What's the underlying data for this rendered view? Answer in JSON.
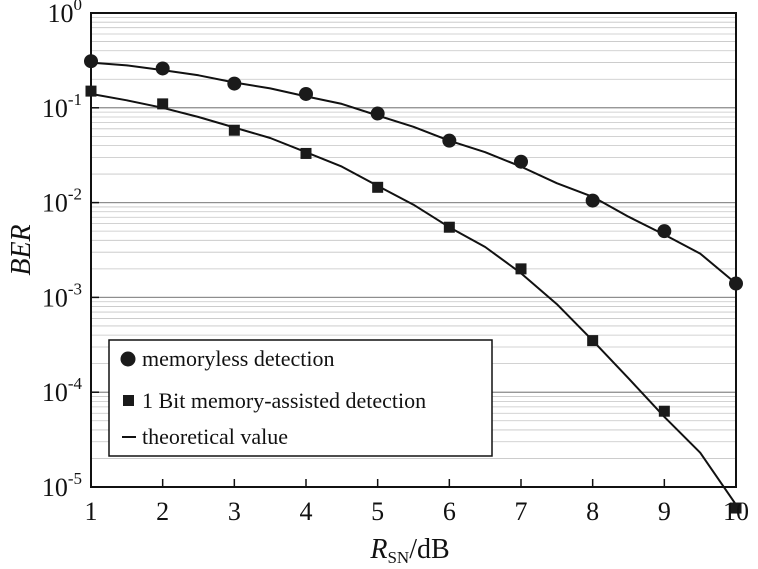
{
  "chart_data": {
    "type": "line",
    "title": "",
    "x_axis": {
      "label_main": "R",
      "label_sub": "SN",
      "label_unit": "/dB",
      "range": [
        1,
        10
      ],
      "ticks": [
        "1",
        "2",
        "3",
        "4",
        "5",
        "6",
        "7",
        "8",
        "9",
        "10"
      ]
    },
    "y_axis": {
      "label": "BER",
      "scale": "log",
      "range": [
        1e-05,
        1
      ],
      "ticks": [
        {
          "base": "10",
          "exp": "0"
        },
        {
          "base": "10",
          "exp": "-1"
        },
        {
          "base": "10",
          "exp": "-2"
        },
        {
          "base": "10",
          "exp": "-3"
        },
        {
          "base": "10",
          "exp": "-4"
        },
        {
          "base": "10",
          "exp": "-5"
        }
      ]
    },
    "grid": "horizontal-minor",
    "legend_position": "bottom-left",
    "series": [
      {
        "name": "memoryless detection",
        "marker": "circle",
        "x": [
          1,
          2,
          3,
          4,
          5,
          6,
          7,
          8,
          9,
          10
        ],
        "y": [
          0.31,
          0.26,
          0.18,
          0.14,
          0.087,
          0.045,
          0.027,
          0.0105,
          0.005,
          0.0014
        ]
      },
      {
        "name": "1 Bit memory-assisted detection",
        "marker": "square",
        "x": [
          1,
          2,
          3,
          4,
          5,
          6,
          7,
          8,
          9,
          10
        ],
        "y": [
          0.15,
          0.11,
          0.058,
          0.033,
          0.0145,
          0.0055,
          0.002,
          0.00035,
          6.3e-05,
          6e-06
        ]
      },
      {
        "name": "theoretical value",
        "marker": "line",
        "curves": [
          {
            "x": [
              1,
              1.5,
              2,
              2.5,
              3,
              3.5,
              4,
              4.5,
              5,
              5.5,
              6,
              6.5,
              7,
              7.5,
              8,
              8.5,
              9,
              9.5,
              10
            ],
            "y": [
              0.3,
              0.28,
              0.25,
              0.22,
              0.185,
              0.16,
              0.132,
              0.11,
              0.083,
              0.063,
              0.045,
              0.034,
              0.024,
              0.016,
              0.0115,
              0.0071,
              0.0046,
              0.0029,
              0.0014
            ]
          },
          {
            "x": [
              1,
              1.5,
              2,
              2.5,
              3,
              3.5,
              4,
              4.5,
              5,
              5.5,
              6,
              6.5,
              7,
              7.5,
              8,
              8.5,
              9,
              9.5,
              10
            ],
            "y": [
              0.14,
              0.12,
              0.1,
              0.08,
              0.062,
              0.048,
              0.034,
              0.024,
              0.015,
              0.0095,
              0.0055,
              0.0034,
              0.0018,
              0.00085,
              0.00035,
              0.00014,
              5.5e-05,
              2.3e-05,
              6.5e-06
            ]
          }
        ]
      }
    ]
  }
}
